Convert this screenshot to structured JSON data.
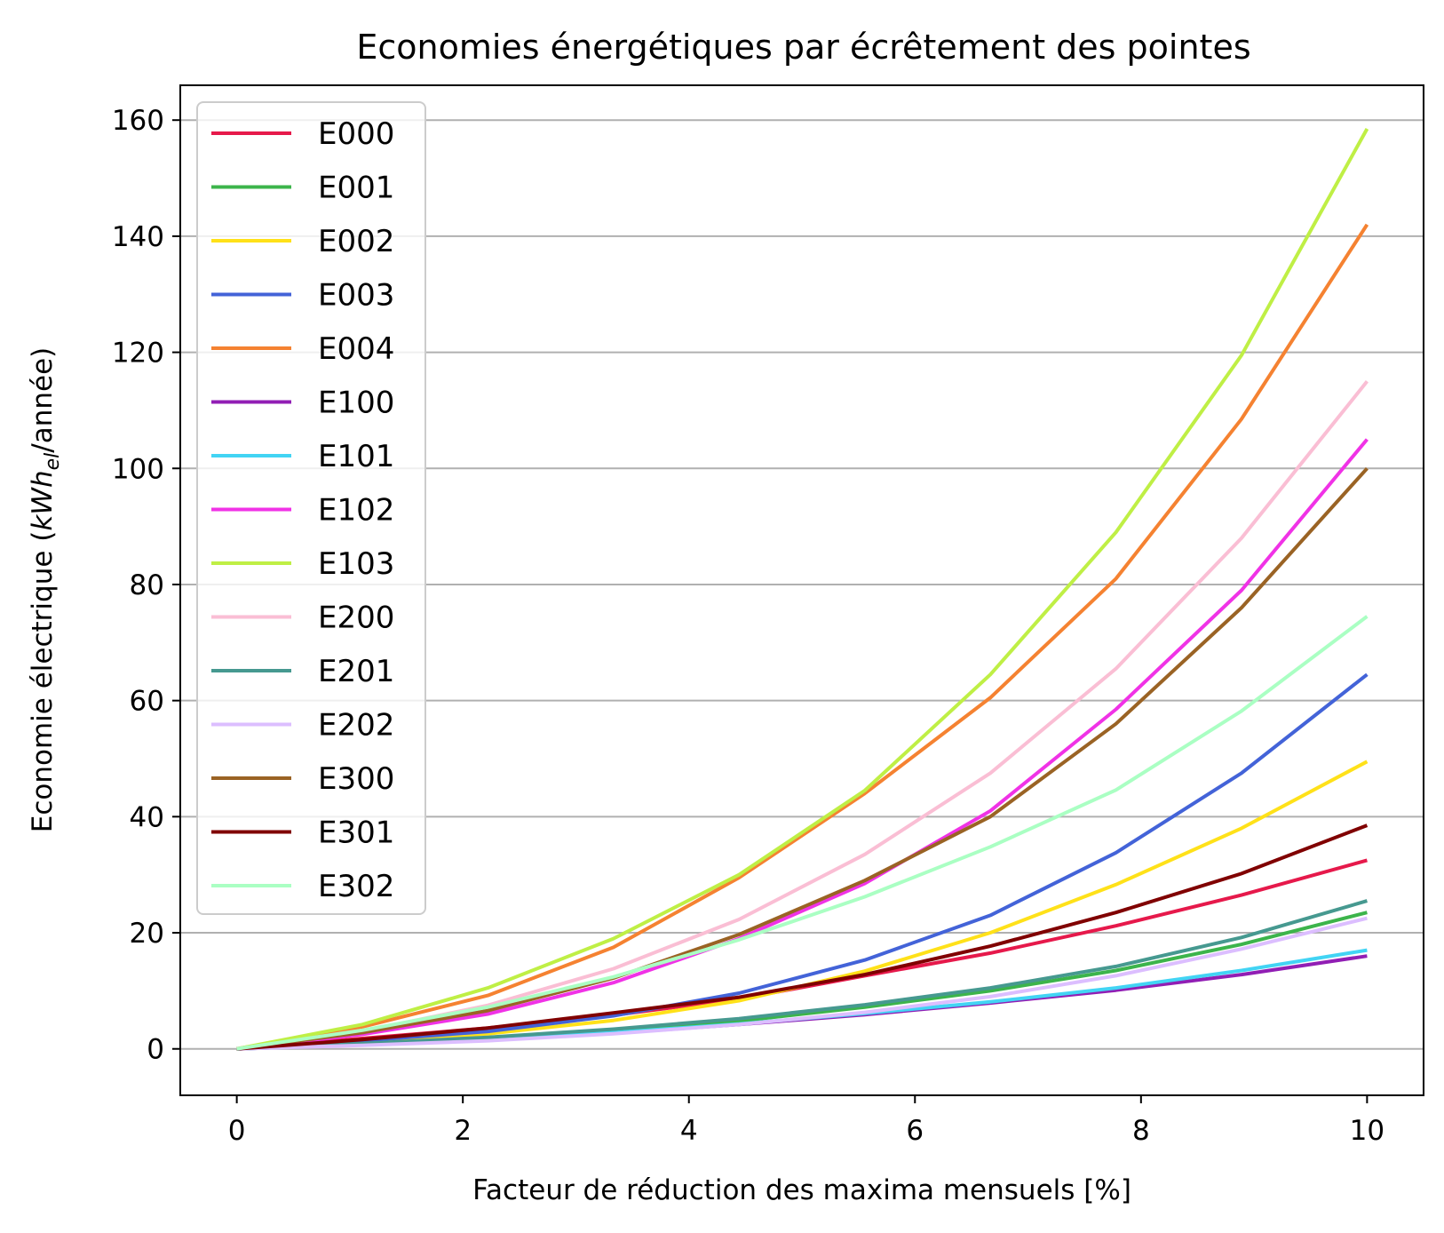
{
  "chart_data": {
    "type": "line",
    "title": "Economies énergétiques par écrêtement des pointes",
    "xlabel": "Facteur de réduction des maxima mensuels [%]",
    "ylabel": {
      "prefix": "Economie électrique (",
      "unit_main": "kWh",
      "unit_sub": "el",
      "suffix": "/année)"
    },
    "xlim": [
      -0.5,
      10.5
    ],
    "ylim": [
      -8,
      166
    ],
    "xticks": [
      0,
      2,
      4,
      6,
      8,
      10
    ],
    "yticks": [
      0,
      20,
      40,
      60,
      80,
      100,
      120,
      140,
      160
    ],
    "xtick_labels": [
      "0",
      "2",
      "4",
      "6",
      "8",
      "10"
    ],
    "ytick_labels": [
      "0",
      "20",
      "40",
      "60",
      "80",
      "100",
      "120",
      "140",
      "160"
    ],
    "grid": "horizontal",
    "legend_position": "top-left",
    "x": [
      0,
      1.111,
      2.222,
      3.333,
      4.444,
      5.556,
      6.667,
      7.778,
      8.889,
      10
    ],
    "series": [
      {
        "name": "E000",
        "color": "#e6194b",
        "values": [
          0,
          1.8,
          3.6,
          5.8,
          8.6,
          12.6,
          16.5,
          21.2,
          26.5,
          32.5
        ]
      },
      {
        "name": "E001",
        "color": "#3cb44b",
        "values": [
          0,
          0.9,
          1.8,
          3.0,
          4.8,
          7.2,
          10.0,
          13.5,
          18.0,
          23.5
        ]
      },
      {
        "name": "E002",
        "color": "#ffe119",
        "values": [
          0,
          1.2,
          2.6,
          4.9,
          8.3,
          13.4,
          20.0,
          28.3,
          38.0,
          49.5
        ]
      },
      {
        "name": "E003",
        "color": "#4363d8",
        "values": [
          0,
          1.4,
          3.0,
          5.7,
          9.6,
          15.3,
          23.0,
          33.8,
          47.5,
          64.5
        ]
      },
      {
        "name": "E004",
        "color": "#f58231",
        "values": [
          0,
          3.8,
          9.2,
          17.5,
          29.5,
          44.0,
          60.5,
          81.0,
          108.5,
          142.0
        ]
      },
      {
        "name": "E100",
        "color": "#911eb4",
        "values": [
          0,
          0.7,
          1.5,
          2.7,
          4.2,
          5.9,
          7.9,
          10.1,
          12.8,
          16.0
        ]
      },
      {
        "name": "E101",
        "color": "#42d4f4",
        "values": [
          0,
          0.7,
          1.6,
          2.8,
          4.3,
          6.1,
          8.1,
          10.5,
          13.5,
          17.0
        ]
      },
      {
        "name": "E102",
        "color": "#f032e6",
        "values": [
          0,
          2.5,
          6.0,
          11.4,
          19.0,
          28.5,
          41.0,
          58.5,
          79.0,
          105.0
        ]
      },
      {
        "name": "E103",
        "color": "#bfef45",
        "values": [
          0,
          4.2,
          10.5,
          19.0,
          30.0,
          44.5,
          64.5,
          89.0,
          119.5,
          158.5
        ]
      },
      {
        "name": "E200",
        "color": "#fabed4",
        "values": [
          0,
          3.0,
          7.5,
          13.8,
          22.3,
          33.5,
          47.5,
          65.5,
          88.0,
          115.0
        ]
      },
      {
        "name": "E201",
        "color": "#469990",
        "values": [
          0,
          0.9,
          2.0,
          3.4,
          5.2,
          7.6,
          10.5,
          14.2,
          19.2,
          25.5
        ]
      },
      {
        "name": "E202",
        "color": "#dcbeff",
        "values": [
          0,
          0.6,
          1.4,
          2.6,
          4.2,
          6.3,
          9.0,
          12.6,
          17.2,
          22.5
        ]
      },
      {
        "name": "E300",
        "color": "#9a6324",
        "values": [
          0,
          2.8,
          6.6,
          12.2,
          19.7,
          29.0,
          40.0,
          56.0,
          76.0,
          100.0
        ]
      },
      {
        "name": "E301",
        "color": "#800000",
        "values": [
          0,
          1.6,
          3.6,
          6.2,
          8.9,
          12.8,
          17.7,
          23.5,
          30.2,
          38.5
        ]
      },
      {
        "name": "E302",
        "color": "#aaffc3",
        "values": [
          0,
          3.2,
          7.2,
          12.4,
          18.8,
          26.2,
          34.8,
          44.6,
          58.2,
          74.5
        ]
      }
    ]
  }
}
